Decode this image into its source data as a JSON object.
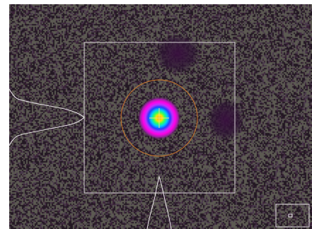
{
  "viewer": {
    "colors": {
      "background_base": "#2a1f2c",
      "noise_light": "#5c5a52",
      "noise_dark": "#231823",
      "roi_box": "#d8d0d8",
      "profile_curve": "#ece6ec",
      "circle_outer": "#d17a2a",
      "crosshair": "#f2e07a",
      "minimap_box": "#e8e2e8"
    },
    "beam": {
      "colormap": [
        "#5a1f6e",
        "#a020c8",
        "#ff00ff",
        "#c040ff",
        "#3050ff",
        "#00c0ff",
        "#00ff80",
        "#ffff00",
        "#ffa000"
      ],
      "relative_intensity_levels": [
        1.0,
        0.85,
        0.7,
        0.55,
        0.4,
        0.28,
        0.16,
        0.08
      ]
    }
  }
}
